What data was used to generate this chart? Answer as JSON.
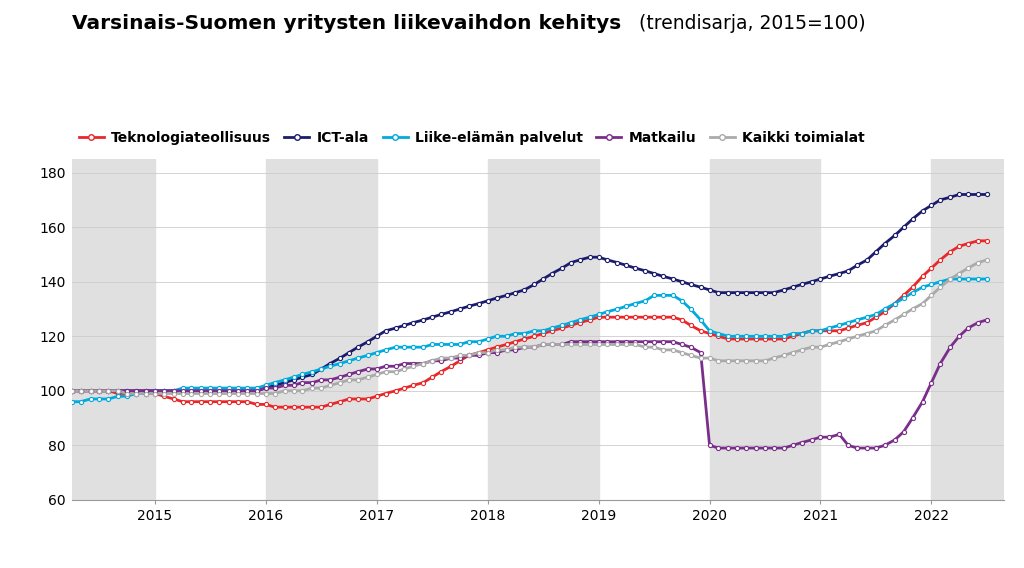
{
  "title_bold": "Varsinais-Suomen yritysten liikevaihdon kehitys",
  "title_normal": " (trendisarja, 2015=100)",
  "background_color": "#ffffff",
  "plot_bg_color": "#ffffff",
  "stripe_color": "#e0e0e0",
  "ylim": [
    60,
    185
  ],
  "yticks": [
    60,
    80,
    100,
    120,
    140,
    160,
    180
  ],
  "legend": [
    {
      "label": "Teknologiateollisuus",
      "color": "#e8282a",
      "lw": 2.0
    },
    {
      "label": "ICT-ala",
      "color": "#1c1c6e",
      "lw": 2.0
    },
    {
      "label": "Liike-elämän palvelut",
      "color": "#00aadd",
      "lw": 2.0
    },
    {
      "label": "Matkailu",
      "color": "#7b2d8b",
      "lw": 2.0
    },
    {
      "label": "Kaikki toimialat",
      "color": "#aaaaaa",
      "lw": 2.0
    }
  ],
  "x_teknologia": [
    2014.25,
    2014.33,
    2014.42,
    2014.5,
    2014.58,
    2014.67,
    2014.75,
    2014.83,
    2014.92,
    2015.0,
    2015.08,
    2015.17,
    2015.25,
    2015.33,
    2015.42,
    2015.5,
    2015.58,
    2015.67,
    2015.75,
    2015.83,
    2015.92,
    2016.0,
    2016.08,
    2016.17,
    2016.25,
    2016.33,
    2016.42,
    2016.5,
    2016.58,
    2016.67,
    2016.75,
    2016.83,
    2016.92,
    2017.0,
    2017.08,
    2017.17,
    2017.25,
    2017.33,
    2017.42,
    2017.5,
    2017.58,
    2017.67,
    2017.75,
    2017.83,
    2017.92,
    2018.0,
    2018.08,
    2018.17,
    2018.25,
    2018.33,
    2018.42,
    2018.5,
    2018.58,
    2018.67,
    2018.75,
    2018.83,
    2018.92,
    2019.0,
    2019.08,
    2019.17,
    2019.25,
    2019.33,
    2019.42,
    2019.5,
    2019.58,
    2019.67,
    2019.75,
    2019.83,
    2019.92,
    2020.0,
    2020.08,
    2020.17,
    2020.25,
    2020.33,
    2020.42,
    2020.5,
    2020.58,
    2020.67,
    2020.75,
    2020.83,
    2020.92,
    2021.0,
    2021.08,
    2021.17,
    2021.25,
    2021.33,
    2021.42,
    2021.5,
    2021.58,
    2021.67,
    2021.75,
    2021.83,
    2021.92,
    2022.0,
    2022.08,
    2022.17,
    2022.25,
    2022.33,
    2022.42,
    2022.5
  ],
  "y_teknologia": [
    100,
    100,
    100,
    100,
    100,
    99,
    99,
    99,
    99,
    99,
    98,
    97,
    96,
    96,
    96,
    96,
    96,
    96,
    96,
    96,
    95,
    95,
    94,
    94,
    94,
    94,
    94,
    94,
    95,
    96,
    97,
    97,
    97,
    98,
    99,
    100,
    101,
    102,
    103,
    105,
    107,
    109,
    111,
    113,
    114,
    115,
    116,
    117,
    118,
    119,
    120,
    121,
    122,
    123,
    124,
    125,
    126,
    127,
    127,
    127,
    127,
    127,
    127,
    127,
    127,
    127,
    126,
    124,
    122,
    121,
    120,
    119,
    119,
    119,
    119,
    119,
    119,
    119,
    120,
    121,
    122,
    122,
    122,
    122,
    123,
    124,
    125,
    127,
    129,
    132,
    135,
    138,
    142,
    145,
    148,
    151,
    153,
    154,
    155,
    155
  ],
  "x_ict": [
    2014.25,
    2014.33,
    2014.42,
    2014.5,
    2014.58,
    2014.67,
    2014.75,
    2014.83,
    2014.92,
    2015.0,
    2015.08,
    2015.17,
    2015.25,
    2015.33,
    2015.42,
    2015.5,
    2015.58,
    2015.67,
    2015.75,
    2015.83,
    2015.92,
    2016.0,
    2016.08,
    2016.17,
    2016.25,
    2016.33,
    2016.42,
    2016.5,
    2016.58,
    2016.67,
    2016.75,
    2016.83,
    2016.92,
    2017.0,
    2017.08,
    2017.17,
    2017.25,
    2017.33,
    2017.42,
    2017.5,
    2017.58,
    2017.67,
    2017.75,
    2017.83,
    2017.92,
    2018.0,
    2018.08,
    2018.17,
    2018.25,
    2018.33,
    2018.42,
    2018.5,
    2018.58,
    2018.67,
    2018.75,
    2018.83,
    2018.92,
    2019.0,
    2019.08,
    2019.17,
    2019.25,
    2019.33,
    2019.42,
    2019.5,
    2019.58,
    2019.67,
    2019.75,
    2019.83,
    2019.92,
    2020.0,
    2020.08,
    2020.17,
    2020.25,
    2020.33,
    2020.42,
    2020.5,
    2020.58,
    2020.67,
    2020.75,
    2020.83,
    2020.92,
    2021.0,
    2021.08,
    2021.17,
    2021.25,
    2021.33,
    2021.42,
    2021.5,
    2021.58,
    2021.67,
    2021.75,
    2021.83,
    2021.92,
    2022.0,
    2022.08,
    2022.17,
    2022.25,
    2022.33,
    2022.42,
    2022.5
  ],
  "y_ict": [
    100,
    100,
    100,
    100,
    100,
    100,
    100,
    100,
    100,
    100,
    100,
    100,
    100,
    100,
    100,
    100,
    100,
    100,
    100,
    100,
    100,
    101,
    102,
    103,
    104,
    105,
    106,
    108,
    110,
    112,
    114,
    116,
    118,
    120,
    122,
    123,
    124,
    125,
    126,
    127,
    128,
    129,
    130,
    131,
    132,
    133,
    134,
    135,
    136,
    137,
    139,
    141,
    143,
    145,
    147,
    148,
    149,
    149,
    148,
    147,
    146,
    145,
    144,
    143,
    142,
    141,
    140,
    139,
    138,
    137,
    136,
    136,
    136,
    136,
    136,
    136,
    136,
    137,
    138,
    139,
    140,
    141,
    142,
    143,
    144,
    146,
    148,
    151,
    154,
    157,
    160,
    163,
    166,
    168,
    170,
    171,
    172,
    172,
    172,
    172
  ],
  "x_liike": [
    2014.25,
    2014.33,
    2014.42,
    2014.5,
    2014.58,
    2014.67,
    2014.75,
    2014.83,
    2014.92,
    2015.0,
    2015.08,
    2015.17,
    2015.25,
    2015.33,
    2015.42,
    2015.5,
    2015.58,
    2015.67,
    2015.75,
    2015.83,
    2015.92,
    2016.0,
    2016.08,
    2016.17,
    2016.25,
    2016.33,
    2016.42,
    2016.5,
    2016.58,
    2016.67,
    2016.75,
    2016.83,
    2016.92,
    2017.0,
    2017.08,
    2017.17,
    2017.25,
    2017.33,
    2017.42,
    2017.5,
    2017.58,
    2017.67,
    2017.75,
    2017.83,
    2017.92,
    2018.0,
    2018.08,
    2018.17,
    2018.25,
    2018.33,
    2018.42,
    2018.5,
    2018.58,
    2018.67,
    2018.75,
    2018.83,
    2018.92,
    2019.0,
    2019.08,
    2019.17,
    2019.25,
    2019.33,
    2019.42,
    2019.5,
    2019.58,
    2019.67,
    2019.75,
    2019.83,
    2019.92,
    2020.0,
    2020.08,
    2020.17,
    2020.25,
    2020.33,
    2020.42,
    2020.5,
    2020.58,
    2020.67,
    2020.75,
    2020.83,
    2020.92,
    2021.0,
    2021.08,
    2021.17,
    2021.25,
    2021.33,
    2021.42,
    2021.5,
    2021.58,
    2021.67,
    2021.75,
    2021.83,
    2021.92,
    2022.0,
    2022.08,
    2022.17,
    2022.25,
    2022.33,
    2022.42,
    2022.5
  ],
  "y_liike": [
    96,
    96,
    97,
    97,
    97,
    98,
    98,
    99,
    99,
    100,
    100,
    100,
    101,
    101,
    101,
    101,
    101,
    101,
    101,
    101,
    101,
    102,
    103,
    104,
    105,
    106,
    107,
    108,
    109,
    110,
    111,
    112,
    113,
    114,
    115,
    116,
    116,
    116,
    116,
    117,
    117,
    117,
    117,
    118,
    118,
    119,
    120,
    120,
    121,
    121,
    122,
    122,
    123,
    124,
    125,
    126,
    127,
    128,
    129,
    130,
    131,
    132,
    133,
    135,
    135,
    135,
    133,
    130,
    126,
    122,
    121,
    120,
    120,
    120,
    120,
    120,
    120,
    120,
    121,
    121,
    122,
    122,
    123,
    124,
    125,
    126,
    127,
    128,
    130,
    132,
    134,
    136,
    138,
    139,
    140,
    141,
    141,
    141,
    141,
    141
  ],
  "x_matkailu": [
    2014.25,
    2014.33,
    2014.42,
    2014.5,
    2014.58,
    2014.67,
    2014.75,
    2014.83,
    2014.92,
    2015.0,
    2015.08,
    2015.17,
    2015.25,
    2015.33,
    2015.42,
    2015.5,
    2015.58,
    2015.67,
    2015.75,
    2015.83,
    2015.92,
    2016.0,
    2016.08,
    2016.17,
    2016.25,
    2016.33,
    2016.42,
    2016.5,
    2016.58,
    2016.67,
    2016.75,
    2016.83,
    2016.92,
    2017.0,
    2017.08,
    2017.17,
    2017.25,
    2017.33,
    2017.42,
    2017.5,
    2017.58,
    2017.67,
    2017.75,
    2017.83,
    2017.92,
    2018.0,
    2018.08,
    2018.17,
    2018.25,
    2018.33,
    2018.42,
    2018.5,
    2018.58,
    2018.67,
    2018.75,
    2018.83,
    2018.92,
    2019.0,
    2019.08,
    2019.17,
    2019.25,
    2019.33,
    2019.42,
    2019.5,
    2019.58,
    2019.67,
    2019.75,
    2019.83,
    2019.92,
    2020.0,
    2020.08,
    2020.17,
    2020.25,
    2020.33,
    2020.42,
    2020.5,
    2020.58,
    2020.67,
    2020.75,
    2020.83,
    2020.92,
    2021.0,
    2021.08,
    2021.17,
    2021.25,
    2021.33,
    2021.42,
    2021.5,
    2021.58,
    2021.67,
    2021.75,
    2021.83,
    2021.92,
    2022.0,
    2022.08,
    2022.17,
    2022.25,
    2022.33,
    2022.42,
    2022.5
  ],
  "y_matkailu": [
    100,
    100,
    100,
    100,
    100,
    100,
    100,
    100,
    100,
    100,
    100,
    100,
    100,
    100,
    100,
    100,
    100,
    100,
    100,
    100,
    100,
    101,
    101,
    102,
    102,
    103,
    103,
    104,
    104,
    105,
    106,
    107,
    108,
    108,
    109,
    109,
    110,
    110,
    110,
    111,
    111,
    112,
    112,
    113,
    113,
    114,
    114,
    115,
    115,
    116,
    116,
    117,
    117,
    117,
    118,
    118,
    118,
    118,
    118,
    118,
    118,
    118,
    118,
    118,
    118,
    118,
    117,
    116,
    114,
    80,
    79,
    79,
    79,
    79,
    79,
    79,
    79,
    79,
    80,
    81,
    82,
    83,
    83,
    84,
    80,
    79,
    79,
    79,
    80,
    82,
    85,
    90,
    96,
    103,
    110,
    116,
    120,
    123,
    125,
    126
  ],
  "x_kaikki": [
    2014.25,
    2014.33,
    2014.42,
    2014.5,
    2014.58,
    2014.67,
    2014.75,
    2014.83,
    2014.92,
    2015.0,
    2015.08,
    2015.17,
    2015.25,
    2015.33,
    2015.42,
    2015.5,
    2015.58,
    2015.67,
    2015.75,
    2015.83,
    2015.92,
    2016.0,
    2016.08,
    2016.17,
    2016.25,
    2016.33,
    2016.42,
    2016.5,
    2016.58,
    2016.67,
    2016.75,
    2016.83,
    2016.92,
    2017.0,
    2017.08,
    2017.17,
    2017.25,
    2017.33,
    2017.42,
    2017.5,
    2017.58,
    2017.67,
    2017.75,
    2017.83,
    2017.92,
    2018.0,
    2018.08,
    2018.17,
    2018.25,
    2018.33,
    2018.42,
    2018.5,
    2018.58,
    2018.67,
    2018.75,
    2018.83,
    2018.92,
    2019.0,
    2019.08,
    2019.17,
    2019.25,
    2019.33,
    2019.42,
    2019.5,
    2019.58,
    2019.67,
    2019.75,
    2019.83,
    2019.92,
    2020.0,
    2020.08,
    2020.17,
    2020.25,
    2020.33,
    2020.42,
    2020.5,
    2020.58,
    2020.67,
    2020.75,
    2020.83,
    2020.92,
    2021.0,
    2021.08,
    2021.17,
    2021.25,
    2021.33,
    2021.42,
    2021.5,
    2021.58,
    2021.67,
    2021.75,
    2021.83,
    2021.92,
    2022.0,
    2022.08,
    2022.17,
    2022.25,
    2022.33,
    2022.42,
    2022.5
  ],
  "y_kaikki": [
    100,
    100,
    100,
    100,
    100,
    100,
    99,
    99,
    99,
    99,
    99,
    99,
    99,
    99,
    99,
    99,
    99,
    99,
    99,
    99,
    99,
    99,
    99,
    100,
    100,
    100,
    101,
    101,
    102,
    103,
    104,
    104,
    105,
    106,
    107,
    107,
    108,
    109,
    110,
    111,
    112,
    112,
    113,
    113,
    114,
    114,
    115,
    115,
    116,
    116,
    116,
    117,
    117,
    117,
    117,
    117,
    117,
    117,
    117,
    117,
    117,
    117,
    116,
    116,
    115,
    115,
    114,
    113,
    112,
    112,
    111,
    111,
    111,
    111,
    111,
    111,
    112,
    113,
    114,
    115,
    116,
    116,
    117,
    118,
    119,
    120,
    121,
    122,
    124,
    126,
    128,
    130,
    132,
    135,
    138,
    141,
    143,
    145,
    147,
    148
  ],
  "xticks": [
    2015.0,
    2016.0,
    2017.0,
    2018.0,
    2019.0,
    2020.0,
    2021.0,
    2022.0
  ],
  "xlim": [
    2014.25,
    2022.65
  ]
}
